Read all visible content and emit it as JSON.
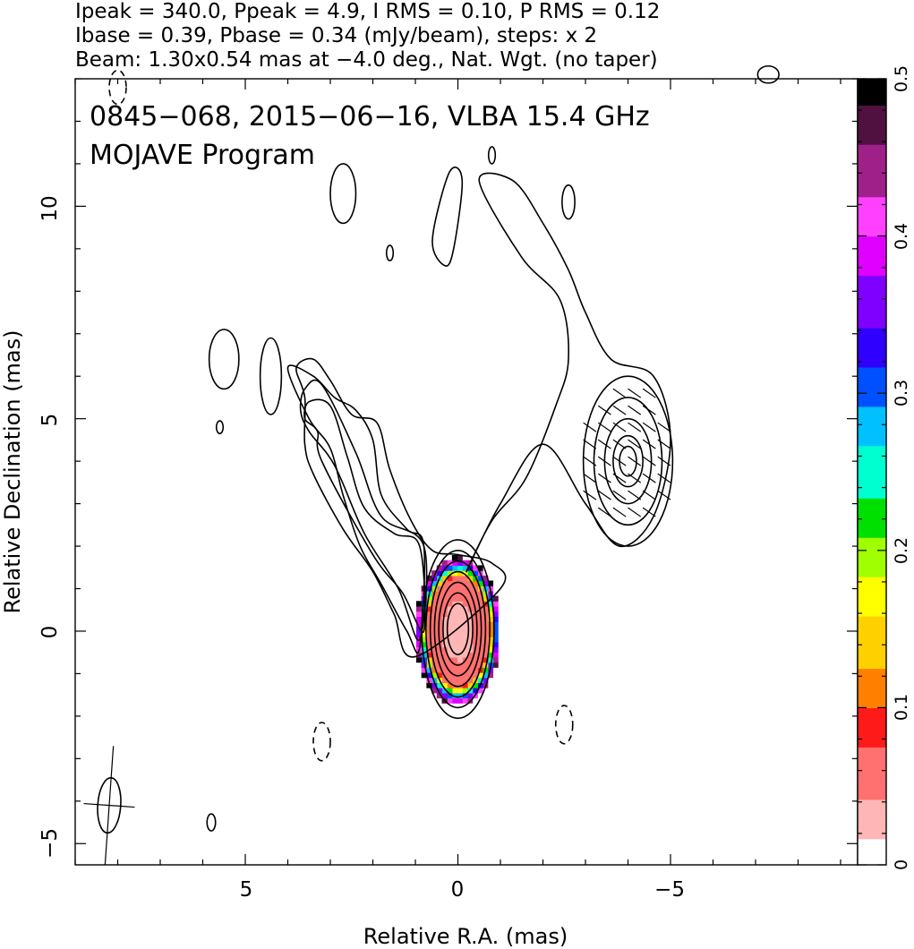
{
  "header": {
    "line1": "Ipeak = 340.0, Ppeak = 4.9, I RMS = 0.10, P RMS = 0.12",
    "line2": "Ibase = 0.39, Pbase = 0.34 (mJy/beam), steps: x 2",
    "line3": "Beam: 1.30x0.54 mas at −4.0 deg., Nat. Wgt. (no taper)"
  },
  "plot_title": {
    "line1": "0845−068, 2015−06−16, VLBA 15.4 GHz",
    "line2": "MOJAVE Program"
  },
  "chart_data": {
    "type": "heatmap",
    "xlabel": "Relative R.A. (mas)",
    "ylabel": "Relative Declination (mas)",
    "xlim": [
      9,
      -9.4
    ],
    "ylim": [
      -5.5,
      13
    ],
    "xticks": [
      5,
      0,
      -5
    ],
    "xtick_labels": [
      "5",
      "0",
      "−5"
    ],
    "yticks": [
      -5,
      0,
      5,
      10
    ],
    "ytick_labels": [
      "−5",
      "0",
      "5",
      "10"
    ],
    "colorbar": {
      "range": [
        0,
        0.5
      ],
      "ticks": [
        0,
        0.1,
        0.2,
        0.3,
        0.4,
        0.5
      ],
      "tick_labels": [
        "0",
        "0.1",
        "0.2",
        "0.3",
        "0.4",
        "0.5"
      ]
    },
    "ipeak_mJy_per_beam": 340.0,
    "ppeak_mJy_per_beam": 4.9,
    "i_rms": 0.1,
    "p_rms": 0.12,
    "ibase": 0.39,
    "pbase": 0.34,
    "contour_step_factor": 2,
    "beam": {
      "major_mas": 1.3,
      "minor_mas": 0.54,
      "pa_deg": -4.0,
      "x": 8.2,
      "y": -4.1
    },
    "core": {
      "x": 0,
      "y": 0,
      "contour_radii": [
        [
          0.85,
          2.1
        ],
        [
          0.75,
          1.85
        ],
        [
          0.65,
          1.6
        ],
        [
          0.55,
          1.35
        ],
        [
          0.45,
          1.1
        ],
        [
          0.35,
          0.85
        ],
        [
          0.25,
          0.6
        ]
      ]
    },
    "knot": {
      "x": -4,
      "y": 4,
      "contour_radii": [
        [
          1.05,
          2.0
        ],
        [
          0.8,
          1.5
        ],
        [
          0.55,
          1.0
        ],
        [
          0.35,
          0.6
        ],
        [
          0.2,
          0.35
        ]
      ]
    },
    "jet_contours": [
      [
        [
          0.9,
          2.0
        ],
        [
          1.5,
          2.3
        ],
        [
          2.2,
          2.9
        ],
        [
          2.6,
          4.1
        ],
        [
          3.0,
          5.3
        ],
        [
          3.5,
          5.4
        ],
        [
          3.6,
          5.0
        ],
        [
          3.3,
          4.7
        ],
        [
          3.2,
          4.0
        ],
        [
          2.0,
          1.8
        ],
        [
          1.3,
          0.9
        ],
        [
          0.8,
          0.0
        ]
      ],
      [
        [
          0.8,
          2.0
        ],
        [
          1.8,
          2.7
        ],
        [
          2.4,
          4.2
        ],
        [
          3.2,
          5.8
        ],
        [
          3.6,
          5.7
        ],
        [
          3.7,
          5.2
        ],
        [
          3.5,
          4.7
        ],
        [
          2.9,
          3.9
        ],
        [
          2.2,
          2.3
        ],
        [
          1.4,
          1.0
        ],
        [
          0.9,
          -0.2
        ]
      ],
      [
        [
          0.8,
          2.0
        ],
        [
          1.2,
          2.4
        ],
        [
          1.8,
          3.2
        ],
        [
          2.0,
          4.5
        ],
        [
          2.4,
          5.2
        ],
        [
          2.9,
          5.5
        ],
        [
          3.4,
          6.0
        ],
        [
          4.0,
          6.2
        ],
        [
          3.5,
          5.0
        ],
        [
          3.0,
          4.3
        ],
        [
          2.7,
          3.2
        ],
        [
          2.3,
          2.0
        ],
        [
          1.8,
          1.1
        ],
        [
          1.2,
          0.0
        ],
        [
          0.9,
          -0.4
        ]
      ],
      [
        [
          1.0,
          -0.6
        ],
        [
          1.5,
          0.4
        ],
        [
          2.0,
          1.4
        ],
        [
          2.7,
          2.4
        ],
        [
          3.4,
          3.7
        ],
        [
          3.6,
          4.4
        ],
        [
          3.6,
          5.5
        ],
        [
          3.8,
          6.2
        ],
        [
          3.4,
          6.4
        ],
        [
          3.0,
          5.9
        ],
        [
          2.5,
          5.1
        ],
        [
          1.9,
          4.9
        ],
        [
          1.6,
          3.8
        ],
        [
          1.1,
          2.6
        ],
        [
          0.6,
          1.9
        ],
        [
          0.0,
          1.8
        ],
        [
          -0.8,
          1.6
        ],
        [
          -1.0,
          1.0
        ]
      ]
    ],
    "polarization_pixels_note": "fractional polarization color map around the core",
    "colormap": [
      "#ffffff",
      "#ffb6b6",
      "#ff7070",
      "#ff1a1a",
      "#ff8000",
      "#ffd000",
      "#ffff00",
      "#a0ff00",
      "#00e000",
      "#00ffd0",
      "#00c0ff",
      "#0050ff",
      "#3000ff",
      "#8000ff",
      "#e000ff",
      "#ff40ff",
      "#a0208a",
      "#501040",
      "#000000"
    ]
  }
}
